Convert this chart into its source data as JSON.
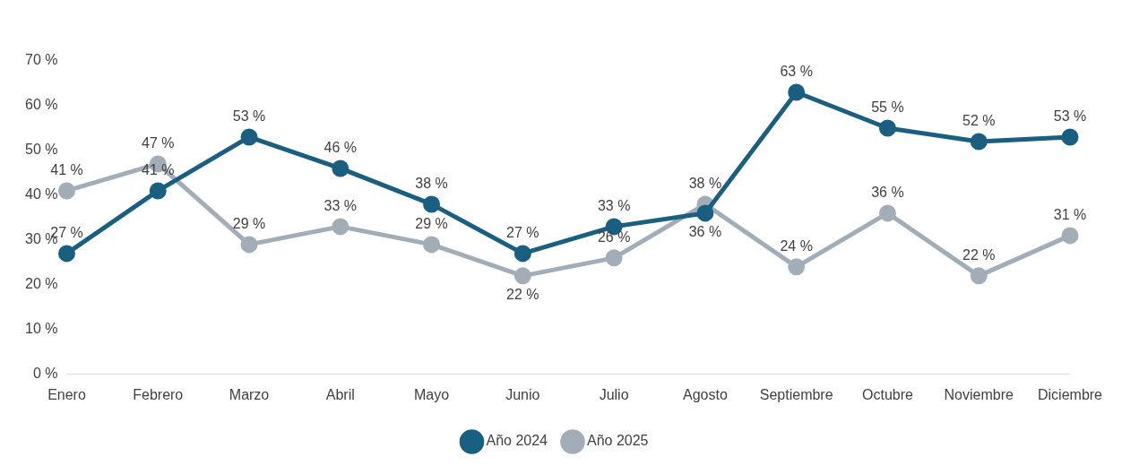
{
  "chart_data": {
    "type": "line",
    "categories": [
      "Enero",
      "Febrero",
      "Marzo",
      "Abril",
      "Mayo",
      "Junio",
      "Julio",
      "Agosto",
      "Septiembre",
      "Octubre",
      "Noviembre",
      "Diciembre"
    ],
    "series": [
      {
        "name": "Año 2024",
        "color": "#1a5e80",
        "values": [
          27,
          41,
          53,
          46,
          38,
          27,
          33,
          36,
          63,
          55,
          52,
          53
        ],
        "value_labels": [
          "27 %",
          "41 %",
          "53 %",
          "46 %",
          "38 %",
          "27 %",
          "33 %",
          "36 %",
          "63 %",
          "55 %",
          "52 %",
          "53 %"
        ]
      },
      {
        "name": "Año 2025",
        "color": "#a2adb8",
        "values": [
          41,
          47,
          29,
          33,
          29,
          22,
          26,
          38,
          24,
          36,
          22,
          31
        ],
        "value_labels": [
          "41 %",
          "47 %",
          "29 %",
          "33 %",
          "29 %",
          "22 %",
          "26 %",
          "38 %",
          "24 %",
          "36 %",
          "22 %",
          "31 %"
        ]
      }
    ],
    "ylim": [
      0,
      70
    ],
    "yticks": [
      {
        "value": 0,
        "label": "0 %"
      },
      {
        "value": 10,
        "label": "10 %"
      },
      {
        "value": 20,
        "label": "20 %"
      },
      {
        "value": 30,
        "label": "30 %"
      },
      {
        "value": 40,
        "label": "40 %"
      },
      {
        "value": 50,
        "label": "50 %"
      },
      {
        "value": 60,
        "label": "60 %"
      },
      {
        "value": 70,
        "label": "70 %"
      }
    ],
    "grid": false,
    "legend": "bottom",
    "marker": "circle",
    "line_style": "solid"
  }
}
